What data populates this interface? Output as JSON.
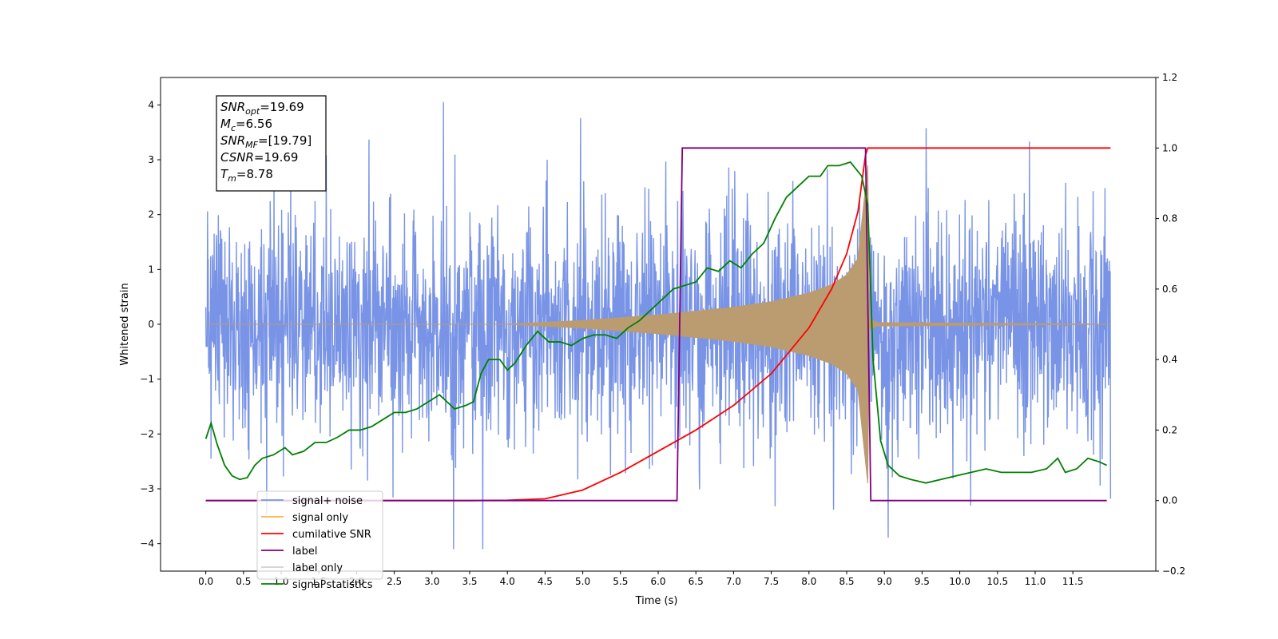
{
  "chart_data": {
    "type": "line",
    "xlabel": "Time (s)",
    "ylabel": "Whitened strain",
    "xlim": [
      -0.6,
      12.6
    ],
    "ylim": [
      -4.5,
      4.5
    ],
    "y2lim": [
      -0.2,
      1.2
    ],
    "grid": false,
    "legend_position": "lower-left",
    "x_ticks": [
      0.0,
      0.5,
      1.0,
      1.5,
      2.0,
      2.5,
      3.0,
      3.5,
      4.0,
      4.5,
      5.0,
      5.5,
      6.0,
      6.5,
      7.0,
      7.5,
      8.0,
      8.5,
      9.0,
      9.5,
      10.0,
      10.5,
      11.0,
      11.5
    ],
    "x_tick_labels": [
      "0.0",
      "0.5",
      "1.0",
      "1.5",
      "2.0",
      "2.5",
      "3.0",
      "3.5",
      "4.0",
      "4.5",
      "5.0",
      "5.5",
      "6.0",
      "6.5",
      "7.0",
      "7.5",
      "8.0",
      "8.5",
      "9.0",
      "9.5",
      "10.0",
      "10.5",
      "11.0",
      "11.5"
    ],
    "y_ticks": [
      -4,
      -3,
      -2,
      -1,
      0,
      1,
      2,
      3,
      4
    ],
    "y_tick_labels": [
      "−4",
      "−3",
      "−2",
      "−1",
      "0",
      "1",
      "2",
      "3",
      "4"
    ],
    "y2_ticks": [
      -0.2,
      0.0,
      0.2,
      0.4,
      0.6,
      0.8,
      1.0,
      1.2
    ],
    "y2_tick_labels": [
      "−0.2",
      "0.0",
      "0.2",
      "0.4",
      "0.6",
      "0.8",
      "1.0",
      "1.2"
    ],
    "annotation": {
      "lines": [
        {
          "base": "SNR",
          "sub": "opt",
          "rest": "=19.69"
        },
        {
          "base": "M",
          "sub": "c",
          "rest": "=6.56"
        },
        {
          "base": "SNR",
          "sub": "MF",
          "rest": "=[19.79]"
        },
        {
          "base": "CSNR",
          "sub": "",
          "rest": "=19.69"
        },
        {
          "base": "T",
          "sub": "m",
          "rest": "=8.78"
        }
      ]
    },
    "series": [
      {
        "name": "signal+ noise",
        "color": "#7994e6",
        "axis": "left",
        "kind": "noise",
        "x_range": [
          0.0,
          12.0
        ],
        "envelope_peak": [
          -4.1,
          4.05
        ]
      },
      {
        "name": "signal only",
        "color": "#bb9b70",
        "axis": "left",
        "kind": "chirp",
        "amplitude_points": [
          [
            0.0,
            0.0
          ],
          [
            4.0,
            0.0
          ],
          [
            5.0,
            0.07
          ],
          [
            6.0,
            0.17
          ],
          [
            6.5,
            0.24
          ],
          [
            7.0,
            0.31
          ],
          [
            7.5,
            0.41
          ],
          [
            8.0,
            0.57
          ],
          [
            8.3,
            0.72
          ],
          [
            8.5,
            0.9
          ],
          [
            8.65,
            1.2
          ],
          [
            8.78,
            2.9
          ],
          [
            8.8,
            0.1
          ],
          [
            8.9,
            0.03
          ],
          [
            12.0,
            0.0
          ]
        ]
      },
      {
        "name": "cumilative SNR",
        "color": "#ff0000",
        "axis": "right",
        "points": [
          [
            0.0,
            0.0
          ],
          [
            3.5,
            0.0
          ],
          [
            4.0,
            0.001
          ],
          [
            4.5,
            0.005
          ],
          [
            5.0,
            0.03
          ],
          [
            5.5,
            0.08
          ],
          [
            6.0,
            0.14
          ],
          [
            6.5,
            0.2
          ],
          [
            7.0,
            0.27
          ],
          [
            7.5,
            0.36
          ],
          [
            8.0,
            0.49
          ],
          [
            8.3,
            0.6
          ],
          [
            8.5,
            0.7
          ],
          [
            8.65,
            0.82
          ],
          [
            8.75,
            0.98
          ],
          [
            8.78,
            1.0
          ],
          [
            12.0,
            1.0
          ]
        ]
      },
      {
        "name": "label",
        "color": "#800080",
        "axis": "right",
        "points": [
          [
            0.0,
            0.0
          ],
          [
            6.25,
            0.0
          ],
          [
            6.32,
            1.0
          ],
          [
            8.75,
            1.0
          ],
          [
            8.82,
            0.0
          ],
          [
            11.95,
            0.0
          ]
        ]
      },
      {
        "name": "label only",
        "color": "#d0d0d0",
        "axis": "right",
        "points": []
      },
      {
        "name": "signal statistics",
        "color": "#008000",
        "axis": "right",
        "points": [
          [
            0.0,
            0.175
          ],
          [
            0.07,
            0.22
          ],
          [
            0.15,
            0.16
          ],
          [
            0.25,
            0.1
          ],
          [
            0.35,
            0.07
          ],
          [
            0.45,
            0.06
          ],
          [
            0.55,
            0.065
          ],
          [
            0.65,
            0.1
          ],
          [
            0.75,
            0.12
          ],
          [
            0.9,
            0.13
          ],
          [
            1.05,
            0.15
          ],
          [
            1.15,
            0.13
          ],
          [
            1.3,
            0.14
          ],
          [
            1.45,
            0.165
          ],
          [
            1.6,
            0.165
          ],
          [
            1.75,
            0.18
          ],
          [
            1.9,
            0.2
          ],
          [
            2.05,
            0.2
          ],
          [
            2.2,
            0.21
          ],
          [
            2.35,
            0.23
          ],
          [
            2.5,
            0.25
          ],
          [
            2.65,
            0.25
          ],
          [
            2.8,
            0.26
          ],
          [
            2.95,
            0.28
          ],
          [
            3.1,
            0.3
          ],
          [
            3.2,
            0.28
          ],
          [
            3.3,
            0.26
          ],
          [
            3.45,
            0.27
          ],
          [
            3.55,
            0.28
          ],
          [
            3.65,
            0.36
          ],
          [
            3.75,
            0.4
          ],
          [
            3.9,
            0.4
          ],
          [
            4.0,
            0.37
          ],
          [
            4.1,
            0.39
          ],
          [
            4.25,
            0.44
          ],
          [
            4.4,
            0.48
          ],
          [
            4.55,
            0.45
          ],
          [
            4.7,
            0.45
          ],
          [
            4.85,
            0.44
          ],
          [
            5.0,
            0.46
          ],
          [
            5.15,
            0.47
          ],
          [
            5.3,
            0.47
          ],
          [
            5.45,
            0.46
          ],
          [
            5.6,
            0.49
          ],
          [
            5.75,
            0.51
          ],
          [
            5.9,
            0.54
          ],
          [
            6.05,
            0.57
          ],
          [
            6.2,
            0.6
          ],
          [
            6.35,
            0.61
          ],
          [
            6.5,
            0.62
          ],
          [
            6.65,
            0.66
          ],
          [
            6.8,
            0.65
          ],
          [
            6.95,
            0.68
          ],
          [
            7.1,
            0.66
          ],
          [
            7.25,
            0.7
          ],
          [
            7.4,
            0.73
          ],
          [
            7.55,
            0.8
          ],
          [
            7.7,
            0.86
          ],
          [
            7.85,
            0.89
          ],
          [
            8.0,
            0.92
          ],
          [
            8.15,
            0.92
          ],
          [
            8.25,
            0.95
          ],
          [
            8.4,
            0.95
          ],
          [
            8.55,
            0.96
          ],
          [
            8.7,
            0.92
          ],
          [
            8.78,
            0.84
          ],
          [
            8.85,
            0.4
          ],
          [
            8.95,
            0.17
          ],
          [
            9.05,
            0.1
          ],
          [
            9.2,
            0.07
          ],
          [
            9.35,
            0.06
          ],
          [
            9.55,
            0.05
          ],
          [
            9.75,
            0.06
          ],
          [
            9.95,
            0.07
          ],
          [
            10.15,
            0.08
          ],
          [
            10.35,
            0.09
          ],
          [
            10.55,
            0.08
          ],
          [
            10.75,
            0.08
          ],
          [
            10.95,
            0.08
          ],
          [
            11.15,
            0.09
          ],
          [
            11.3,
            0.12
          ],
          [
            11.4,
            0.08
          ],
          [
            11.55,
            0.09
          ],
          [
            11.7,
            0.12
          ],
          [
            11.85,
            0.11
          ],
          [
            11.95,
            0.1
          ]
        ]
      }
    ]
  }
}
